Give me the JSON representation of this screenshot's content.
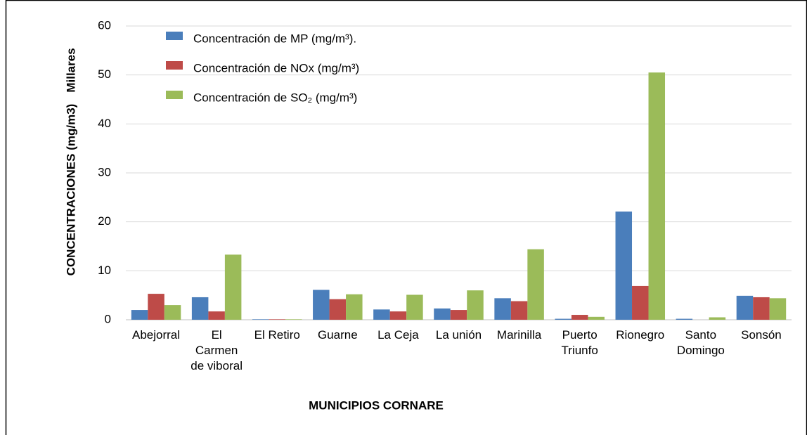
{
  "chart_data": {
    "type": "bar",
    "y_label": "CONCENTRACIONES (mg/m3)",
    "y_unit_label": "Millares",
    "x_label": "MUNICIPIOS CORNARE",
    "categories": [
      "Abejorral",
      "El\nCarmen\nde viboral",
      "El Retiro",
      "Guarne",
      "La Ceja",
      "La unión",
      "Marinilla",
      "Puerto\nTriunfo",
      "Rionegro",
      "Santo\nDomingo",
      "Sonsón"
    ],
    "series": [
      {
        "name": "Concentración de MP (mg/m³).",
        "color": "#4a7ebb",
        "values": [
          2.0,
          4.6,
          0.1,
          6.1,
          2.1,
          2.3,
          4.4,
          0.2,
          22.1,
          0.2,
          4.9
        ]
      },
      {
        "name": "Concentración de NOx (mg/m³)",
        "color": "#be4b48",
        "values": [
          5.3,
          1.7,
          0.1,
          4.2,
          1.7,
          2.0,
          3.8,
          1.0,
          6.9,
          0.0,
          4.6
        ]
      },
      {
        "name": "Concentración de SO₂ (mg/m³)",
        "color": "#9bbb59",
        "values": [
          3.0,
          13.3,
          0.1,
          5.2,
          5.1,
          6.0,
          14.4,
          0.6,
          50.5,
          0.5,
          4.4
        ]
      }
    ],
    "ylim": [
      0,
      60
    ],
    "yticks": [
      0,
      10,
      20,
      30,
      40,
      50,
      60
    ],
    "grid": true,
    "legend": "top-left"
  }
}
